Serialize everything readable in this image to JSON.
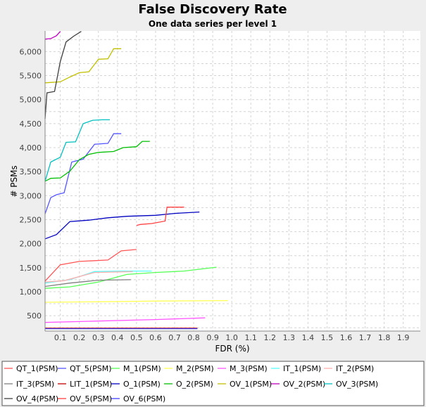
{
  "chart_data": {
    "type": "line",
    "title": "False Discovery Rate",
    "subtitle": "One data series per level 1",
    "xlabel": "FDR (%)",
    "ylabel": "# PSMs",
    "xlim": [
      0.02,
      1.99
    ],
    "ylim": [
      180,
      6430
    ],
    "x_ticks": [
      0.1,
      0.2,
      0.3,
      0.4,
      0.5,
      0.6,
      0.7,
      0.8,
      0.9,
      1.0,
      1.1,
      1.2,
      1.3,
      1.4,
      1.5,
      1.6,
      1.7,
      1.8,
      1.9
    ],
    "x_tick_labels": [
      "0.1",
      "0.2",
      "0.3",
      "0.4",
      "0.5",
      "0.6",
      "0.7",
      "0.8",
      "0.9",
      "1.0",
      "1.1",
      "1.2",
      "1.3",
      "1.4",
      "1.5",
      "1.6",
      "1.7",
      "1.8",
      "1.9"
    ],
    "y_ticks": [
      250,
      500,
      750,
      1000,
      1250,
      1500,
      1750,
      2000,
      2250,
      2500,
      2750,
      3000,
      3250,
      3500,
      3750,
      4000,
      4250,
      4500,
      4750,
      5000,
      5250,
      5500,
      5750,
      6000,
      6250
    ],
    "y_tick_labels": [
      "",
      "500",
      "",
      "1,000",
      "",
      "1,500",
      "",
      "2,000",
      "",
      "2,500",
      "",
      "3,000",
      "",
      "3,500",
      "",
      "4,000",
      "",
      "4,500",
      "",
      "5,000",
      "",
      "5,500",
      "",
      "6,000",
      ""
    ],
    "grid": true,
    "legend_position": "bottom",
    "series": [
      {
        "name": "QT_1(PSM)",
        "color": "#ff5555",
        "x": [
          0.02,
          0.1,
          0.2,
          0.35,
          0.42,
          0.5
        ],
        "y": [
          1220,
          1560,
          1630,
          1660,
          1850,
          1880
        ]
      },
      {
        "name": "QT_5(PSM)",
        "color": "#5555ff",
        "x": [
          0.02,
          0.05,
          0.08,
          0.12,
          0.16,
          0.22,
          0.28,
          0.35,
          0.38,
          0.42
        ],
        "y": [
          2620,
          2960,
          3020,
          3060,
          3700,
          3760,
          4070,
          4090,
          4290,
          4290
        ]
      },
      {
        "name": "M_1(PSM)",
        "color": "#55ff55",
        "x": [
          0.02,
          0.15,
          0.3,
          0.45,
          0.6,
          0.75,
          0.92
        ],
        "y": [
          1070,
          1100,
          1200,
          1360,
          1400,
          1430,
          1510
        ]
      },
      {
        "name": "M_2(PSM)",
        "color": "#ffff55",
        "x": [
          0.02,
          0.3,
          0.6,
          0.98
        ],
        "y": [
          780,
          790,
          805,
          815
        ]
      },
      {
        "name": "M_3(PSM)",
        "color": "#ff55ff",
        "x": [
          0.02,
          0.3,
          0.6,
          0.86
        ],
        "y": [
          360,
          390,
          420,
          455
        ]
      },
      {
        "name": "IT_1(PSM)",
        "color": "#55ffff",
        "x": [
          0.02,
          0.15,
          0.28,
          0.45,
          0.58
        ],
        "y": [
          1180,
          1250,
          1420,
          1430,
          1430
        ]
      },
      {
        "name": "IT_2(PSM)",
        "color": "#ffafaf",
        "x": [
          0.02,
          0.12,
          0.28,
          0.48
        ],
        "y": [
          1200,
          1230,
          1400,
          1420
        ]
      },
      {
        "name": "IT_3(PSM)",
        "color": "#808080",
        "x": [
          0.02,
          0.15,
          0.3,
          0.47
        ],
        "y": [
          1110,
          1180,
          1240,
          1250
        ]
      },
      {
        "name": "LIT_1(PSM)",
        "color": "#c00000",
        "x": [
          0.02,
          0.3,
          0.55,
          0.82
        ],
        "y": [
          240,
          240,
          240,
          240
        ]
      },
      {
        "name": "O_1(PSM)",
        "color": "#0000c0",
        "x": [
          0.02,
          0.08,
          0.15,
          0.25,
          0.35,
          0.45,
          0.6,
          0.7,
          0.83
        ],
        "y": [
          2100,
          2190,
          2460,
          2490,
          2540,
          2570,
          2590,
          2630,
          2660
        ]
      },
      {
        "name": "O_2(PSM)",
        "color": "#00c000",
        "x": [
          0.02,
          0.05,
          0.1,
          0.15,
          0.2,
          0.25,
          0.3,
          0.38,
          0.43,
          0.5,
          0.53,
          0.57
        ],
        "y": [
          3300,
          3360,
          3370,
          3510,
          3750,
          3860,
          3900,
          3920,
          4000,
          4020,
          4130,
          4130
        ]
      },
      {
        "name": "OV_1(PSM)",
        "color": "#c0c000",
        "x": [
          0.02,
          0.1,
          0.15,
          0.2,
          0.25,
          0.3,
          0.35,
          0.38,
          0.42
        ],
        "y": [
          5350,
          5370,
          5470,
          5560,
          5580,
          5840,
          5850,
          6060,
          6060
        ]
      },
      {
        "name": "OV_2(PSM)",
        "color": "#c000c0",
        "x": [
          0.02,
          0.05,
          0.08,
          0.1
        ],
        "y": [
          6260,
          6270,
          6330,
          6420
        ]
      },
      {
        "name": "OV_3(PSM)",
        "color": "#00c0c0",
        "x": [
          0.02,
          0.05,
          0.1,
          0.13,
          0.18,
          0.22,
          0.27,
          0.32,
          0.36
        ],
        "y": [
          3300,
          3700,
          3800,
          4110,
          4120,
          4500,
          4570,
          4580,
          4580
        ]
      },
      {
        "name": "OV_4(PSM)",
        "color": "#404040",
        "x": [
          0.02,
          0.03,
          0.07,
          0.1,
          0.13,
          0.17,
          0.21
        ],
        "y": [
          4600,
          5140,
          5170,
          5790,
          6200,
          6320,
          6420
        ]
      },
      {
        "name": "OV_5(PSM)",
        "color": "#ff4040",
        "x": [
          0.5,
          0.52,
          0.58,
          0.65,
          0.66,
          0.75
        ],
        "y": [
          2380,
          2400,
          2420,
          2470,
          2760,
          2760
        ]
      },
      {
        "name": "OV_6(PSM)",
        "color": "#4040ff",
        "x": [
          0.02,
          0.3,
          0.55,
          0.82
        ],
        "y": [
          230,
          230,
          230,
          230
        ]
      }
    ]
  }
}
